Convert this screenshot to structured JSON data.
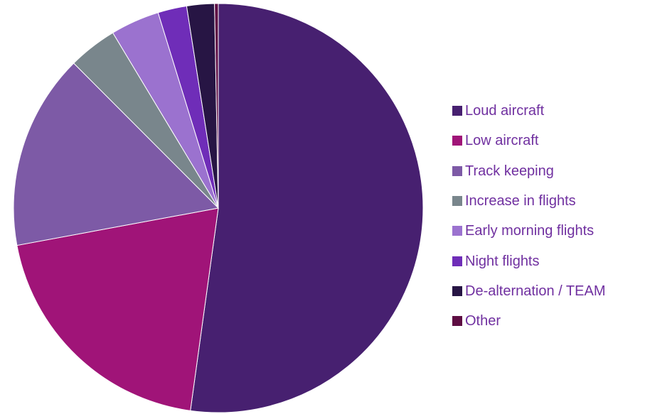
{
  "chart_data": {
    "type": "pie",
    "title": "",
    "legend_position": "right",
    "label_color": "#7030a0",
    "categories": [
      "Loud aircraft",
      "Low aircraft",
      "Track keeping",
      "Increase in flights",
      "Early morning flights",
      "Night flights",
      "De-alternation / TEAM",
      "Other"
    ],
    "values": [
      52.7,
      20.1,
      15.6,
      3.9,
      3.9,
      2.3,
      2.2,
      0.3
    ],
    "colors": [
      "#472070",
      "#a01478",
      "#7d5aa6",
      "#79868c",
      "#9b72cf",
      "#6f2db8",
      "#271544",
      "#5e0d43"
    ]
  }
}
